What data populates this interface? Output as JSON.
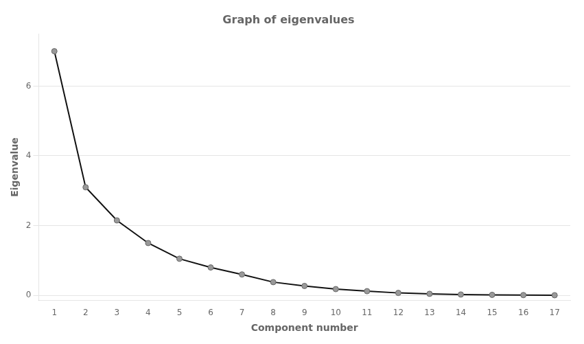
{
  "chart_data": {
    "type": "line",
    "title": "Graph of eigenvalues",
    "x_label": "Component number",
    "y_label": "Eigenvalue",
    "x": [
      1,
      2,
      3,
      4,
      5,
      6,
      7,
      8,
      9,
      10,
      11,
      12,
      13,
      14,
      15,
      16,
      17
    ],
    "values": [
      7.0,
      3.1,
      2.15,
      1.5,
      1.05,
      0.8,
      0.6,
      0.38,
      0.27,
      0.18,
      0.12,
      0.07,
      0.045,
      0.025,
      0.015,
      0.008,
      0.004
    ],
    "xlim": [
      0.5,
      17.5
    ],
    "ylim": [
      -0.15,
      7.5
    ],
    "xticks": [
      1,
      2,
      3,
      4,
      5,
      6,
      7,
      8,
      9,
      10,
      11,
      12,
      13,
      14,
      15,
      16,
      17
    ],
    "yticks": [
      0,
      2,
      4,
      6
    ],
    "color": "#111111",
    "marker": "circle",
    "grid": true
  }
}
